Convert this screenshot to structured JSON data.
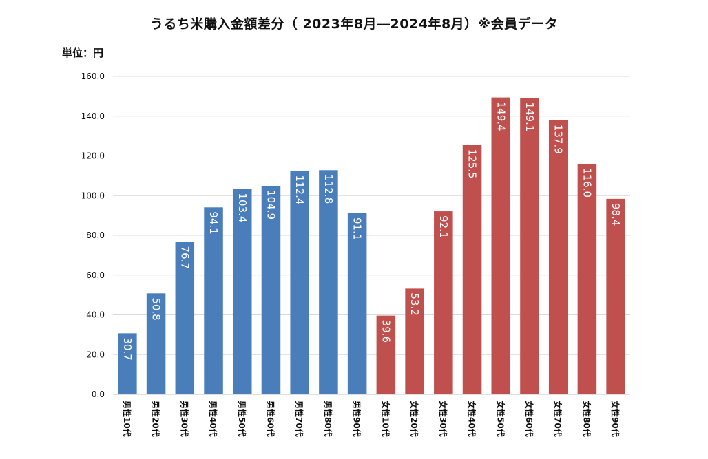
{
  "chart_data": {
    "type": "bar",
    "title": "うるち米購入金額差分（ 2023年8月―2024年8月）※会員データ",
    "unit_label": "単位：円",
    "xlabel": "",
    "ylabel": "",
    "ylim": [
      0,
      160
    ],
    "yticks": [
      "0.0",
      "20.0",
      "40.0",
      "60.0",
      "80.0",
      "100.0",
      "120.0",
      "140.0",
      "160.0"
    ],
    "grid": true,
    "categories": [
      "男性10代",
      "男性20代",
      "男性30代",
      "男性40代",
      "男性50代",
      "男性60代",
      "男性70代",
      "男性80代",
      "男性90代",
      "女性10代",
      "女性20代",
      "女性30代",
      "女性40代",
      "女性50代",
      "女性60代",
      "女性70代",
      "女性80代",
      "女性90代"
    ],
    "values": [
      30.7,
      50.8,
      76.7,
      94.1,
      103.4,
      104.9,
      112.4,
      112.8,
      91.1,
      39.6,
      53.2,
      92.1,
      125.5,
      149.4,
      149.1,
      137.9,
      116.0,
      98.4
    ],
    "value_labels": [
      "30.7",
      "50.8",
      "76.7",
      "94.1",
      "103.4",
      "104.9",
      "112.4",
      "112.8",
      "91.1",
      "39.6",
      "53.2",
      "92.1",
      "125.5",
      "149.4",
      "149.1",
      "137.9",
      "116.0",
      "98.4"
    ],
    "colors": {
      "male": "#4a7ebb",
      "female": "#c0504d",
      "grid": "#d9d9d9",
      "axis": "#bfbfbf"
    }
  }
}
